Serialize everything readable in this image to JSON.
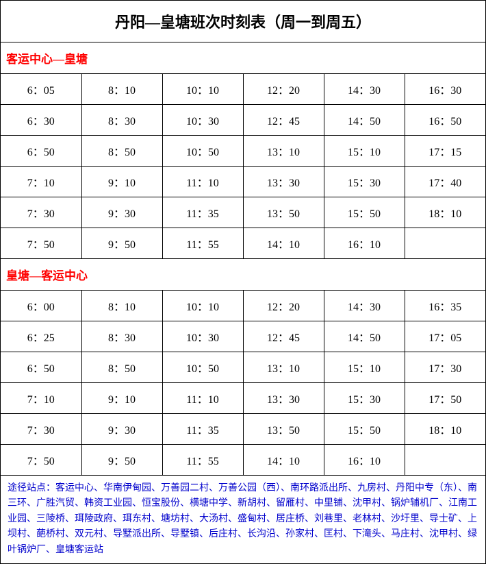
{
  "title": "丹阳—皇塘班次时刻表（周一到周五）",
  "section1": {
    "header": "客运中心—皇塘",
    "rows": [
      [
        "6：05",
        "8：10",
        "10：10",
        "12：20",
        "14：30",
        "16：30"
      ],
      [
        "6：30",
        "8：30",
        "10：30",
        "12：45",
        "14：50",
        "16：50"
      ],
      [
        "6：50",
        "8：50",
        "10：50",
        "13：10",
        "15：10",
        "17：15"
      ],
      [
        "7：10",
        "9：10",
        "11：10",
        "13：30",
        "15：30",
        "17：40"
      ],
      [
        "7：30",
        "9：30",
        "11：35",
        "13：50",
        "15：50",
        "18：10"
      ],
      [
        "7：50",
        "9：50",
        "11：55",
        "14：10",
        "16：10",
        ""
      ]
    ]
  },
  "section2": {
    "header": "皇塘—客运中心",
    "rows": [
      [
        "6：00",
        "8：10",
        "10：10",
        "12：20",
        "14：30",
        "16：35"
      ],
      [
        "6：25",
        "8：30",
        "10：30",
        "12：45",
        "14：50",
        "17：05"
      ],
      [
        "6：50",
        "8：50",
        "10：50",
        "13：10",
        "15：10",
        "17：30"
      ],
      [
        "7：10",
        "9：10",
        "11：10",
        "13：30",
        "15：30",
        "17：50"
      ],
      [
        "7：30",
        "9：30",
        "11：35",
        "13：50",
        "15：50",
        "18：10"
      ],
      [
        "7：50",
        "9：50",
        "11：55",
        "14：10",
        "16：10",
        ""
      ]
    ]
  },
  "footer": "途径站点：客运中心、华南伊甸园、万善园二村、万善公园（西）、南环路派出所、九房村、丹阳中专（东）、南三环、广胜汽贸、韩资工业园、恒宝股份、横塘中学、新胡村、留雁村、中里铺、沈甲村、锅炉辅机厂、江南工业园、三陵桥、珥陵政府、珥东村、塘坊村、大汤村、盛甸村、居庄桥、刘巷里、老林村、沙圩里、导士矿、上坝村、葩桥村、双元村、导墅派出所、导墅镇、后庄村、长沟沿、孙家村、匡村、下滝头、马庄村、沈甲村、绿叶锅炉厂、皇塘客运站",
  "colors": {
    "border": "#000000",
    "header_text": "#ff0000",
    "footer_text": "#0000cc",
    "background": "#ffffff"
  }
}
